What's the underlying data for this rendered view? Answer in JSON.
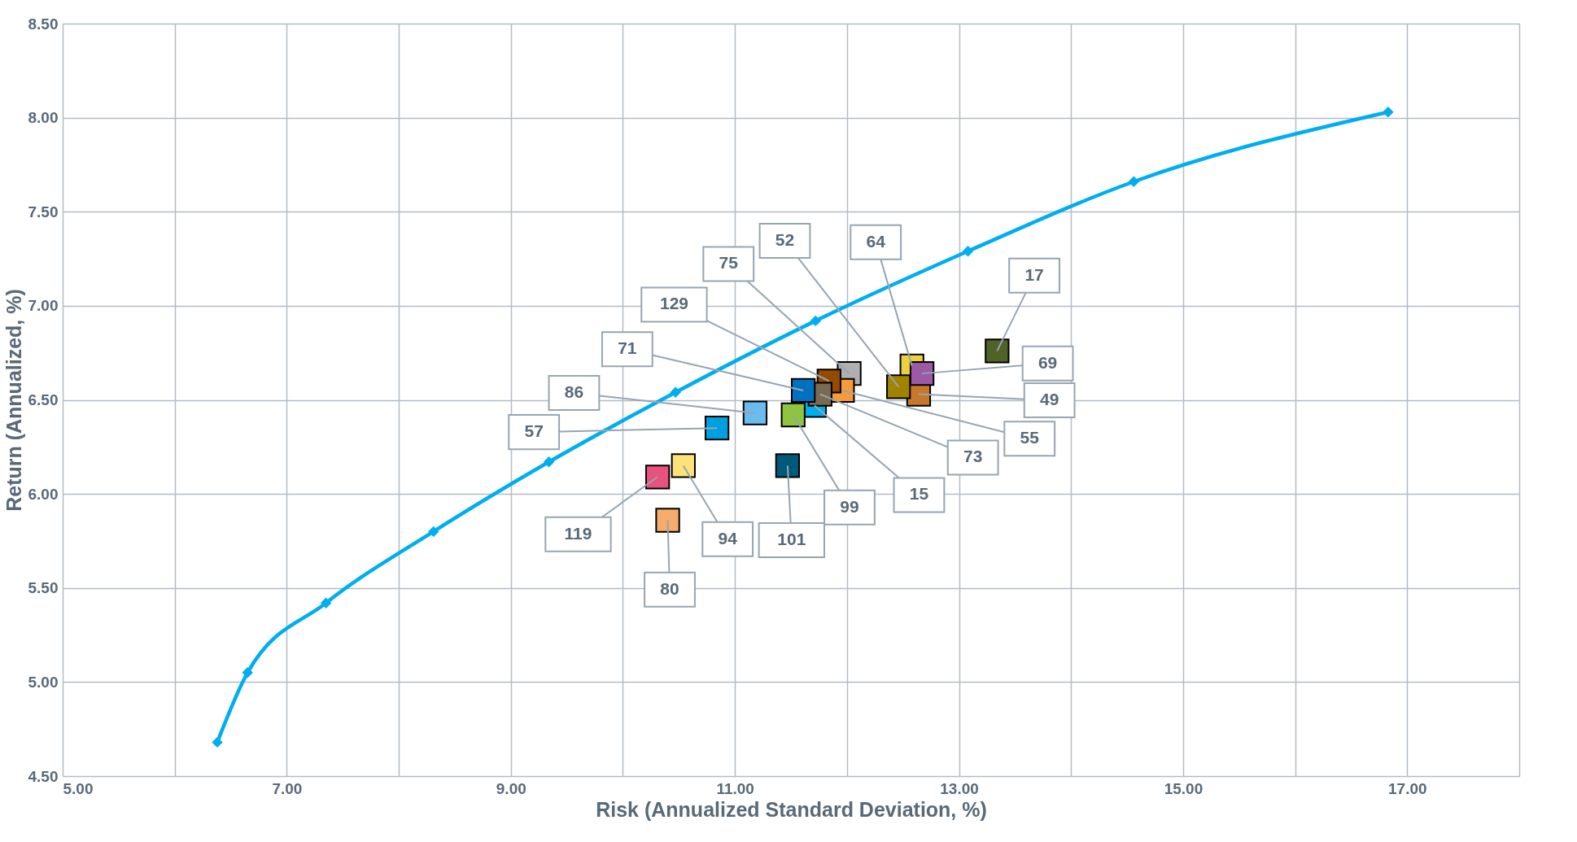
{
  "chart_data": {
    "type": "scatter",
    "xlabel": "Risk (Annualized Standard Deviation, %)",
    "ylabel": "Return (Annualized, %)",
    "xlim": [
      5,
      18
    ],
    "ylim": [
      4.5,
      8.5
    ],
    "xticks": [
      {
        "value": 5,
        "label": "5.00"
      },
      {
        "value": 6,
        "label": null
      },
      {
        "value": 7,
        "label": "7.00"
      },
      {
        "value": 8,
        "label": null
      },
      {
        "value": 9,
        "label": "9.00"
      },
      {
        "value": 10,
        "label": null
      },
      {
        "value": 11,
        "label": "11.00"
      },
      {
        "value": 12,
        "label": null
      },
      {
        "value": 13,
        "label": "13.00"
      },
      {
        "value": 14,
        "label": null
      },
      {
        "value": 15,
        "label": "15.00"
      },
      {
        "value": 16,
        "label": null
      },
      {
        "value": 17,
        "label": "17.00"
      },
      {
        "value": 18,
        "label": null
      }
    ],
    "yticks": [
      {
        "value": 4.5,
        "label": "4.50"
      },
      {
        "value": 5,
        "label": "5.00"
      },
      {
        "value": 5.5,
        "label": "5.50"
      },
      {
        "value": 6,
        "label": "6.00"
      },
      {
        "value": 6.5,
        "label": "6.50"
      },
      {
        "value": 7,
        "label": "7.00"
      },
      {
        "value": 7.5,
        "label": "7.50"
      },
      {
        "value": 8,
        "label": "8.00"
      },
      {
        "value": 8.5,
        "label": "8.50"
      }
    ],
    "grid": true,
    "series": [
      {
        "type": "line",
        "marker": "diamond",
        "color": "#00aeef",
        "x": [
          6.38,
          6.65,
          7.35,
          8.31,
          9.34,
          10.47,
          11.72,
          13.08,
          14.56,
          16.83
        ],
        "values": [
          4.68,
          5.05,
          5.42,
          5.8,
          6.17,
          6.54,
          6.92,
          7.29,
          7.66,
          8.03
        ]
      },
      {
        "marker": "square",
        "name": "17",
        "color": "#4f6228",
        "x": [
          13.34
        ],
        "values": [
          6.76
        ]
      },
      {
        "type": "scatter",
        "marker": "square",
        "name": "64",
        "color": "#ecd03c",
        "x": [
          12.58
        ],
        "values": [
          6.68
        ]
      },
      {
        "type": "scatter",
        "marker": "square",
        "name": "49",
        "color": "#c87828",
        "x": [
          12.64
        ],
        "values": [
          6.53
        ]
      },
      {
        "type": "scatter",
        "marker": "square",
        "name": "52",
        "color": "#a08400",
        "x": [
          12.46
        ],
        "values": [
          6.57
        ]
      },
      {
        "type": "scatter",
        "marker": "square",
        "name": "69",
        "color": "#9b59a6",
        "x": [
          12.67
        ],
        "values": [
          6.64
        ]
      },
      {
        "type": "scatter",
        "marker": "square",
        "name": "75",
        "color": "#b0b0b0",
        "x": [
          12.02
        ],
        "values": [
          6.64
        ]
      },
      {
        "type": "scatter",
        "marker": "square",
        "name": "55",
        "color": "#f79a3a",
        "x": [
          11.96
        ],
        "values": [
          6.55
        ]
      },
      {
        "type": "scatter",
        "marker": "square",
        "name": "129",
        "color": "#944a00",
        "x": [
          11.84
        ],
        "values": [
          6.6
        ]
      },
      {
        "type": "scatter",
        "marker": "square",
        "name": "15",
        "color": "#00aeef",
        "x": [
          11.71
        ],
        "values": [
          6.47
        ]
      },
      {
        "type": "scatter",
        "marker": "square",
        "name": "73",
        "color": "#7a6a50",
        "x": [
          11.76
        ],
        "values": [
          6.53
        ]
      },
      {
        "type": "scatter",
        "marker": "square",
        "name": "71",
        "color": "#0070c0",
        "x": [
          11.61
        ],
        "values": [
          6.55
        ]
      },
      {
        "type": "scatter",
        "marker": "square",
        "name": "99",
        "color": "#8ec43f",
        "x": [
          11.52
        ],
        "values": [
          6.42
        ]
      },
      {
        "type": "scatter",
        "marker": "square",
        "name": "101",
        "color": "#00587a",
        "x": [
          11.47
        ],
        "values": [
          6.15
        ]
      },
      {
        "type": "scatter",
        "marker": "square",
        "name": "86",
        "color": "#6abcee",
        "x": [
          11.18
        ],
        "values": [
          6.43
        ]
      },
      {
        "type": "scatter",
        "marker": "square",
        "name": "57",
        "color": "#00a0e0",
        "x": [
          10.84
        ],
        "values": [
          6.35
        ]
      },
      {
        "type": "scatter",
        "marker": "square",
        "name": "94",
        "color": "#fde27a",
        "x": [
          10.54
        ],
        "values": [
          6.15
        ]
      },
      {
        "type": "scatter",
        "marker": "square",
        "name": "119",
        "color": "#e8527e",
        "x": [
          10.31
        ],
        "values": [
          6.09
        ]
      },
      {
        "type": "scatter",
        "marker": "square",
        "name": "80",
        "color": "#f6ac6d",
        "x": [
          10.4
        ],
        "values": [
          5.86
        ]
      }
    ]
  }
}
